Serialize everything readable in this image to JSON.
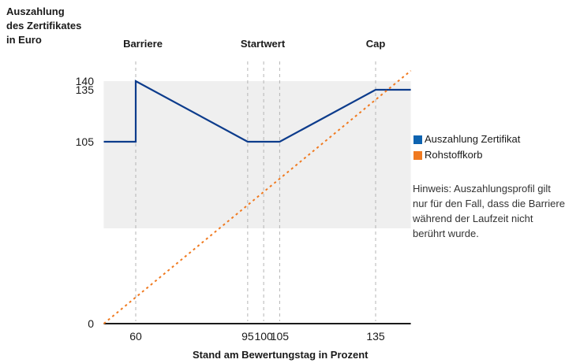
{
  "chart_data": {
    "type": "line",
    "ylabel": "Auszahlung\ndes Zertifikates\nin Euro",
    "xlabel": "Stand am Bewertungstag in Prozent",
    "xlim": [
      50,
      146
    ],
    "ylim": [
      0,
      150
    ],
    "x_ticks": [
      60,
      95,
      100,
      105,
      135
    ],
    "y_ticks": [
      0,
      105,
      135,
      140
    ],
    "category_labels": [
      {
        "label": "Barriere",
        "x": 60
      },
      {
        "label": "Startwert",
        "x": 100
      },
      {
        "label": "Cap",
        "x": 135
      }
    ],
    "reference_lines_x": [
      60,
      95,
      100,
      105,
      135
    ],
    "shaded_y_range": [
      55,
      140
    ],
    "shaded_x_range": [
      50,
      146
    ],
    "series": [
      {
        "name": "Auszahlung Zertifikat",
        "color": "#0d3c8c",
        "style": "solid",
        "points": [
          [
            50,
            105
          ],
          [
            60,
            105
          ],
          [
            60,
            140
          ],
          [
            95,
            105
          ],
          [
            105,
            105
          ],
          [
            135,
            135
          ],
          [
            146,
            135
          ]
        ]
      },
      {
        "name": "Rohstoffkorb",
        "color": "#f07a20",
        "style": "dotted",
        "points": [
          [
            50,
            0
          ],
          [
            146,
            146
          ]
        ]
      }
    ],
    "legend_position": "right",
    "note": "Hinweis: Auszahlungsprofil gilt nur für den Fall, dass die Barriere während der Laufzeit nicht berührt wurde."
  }
}
